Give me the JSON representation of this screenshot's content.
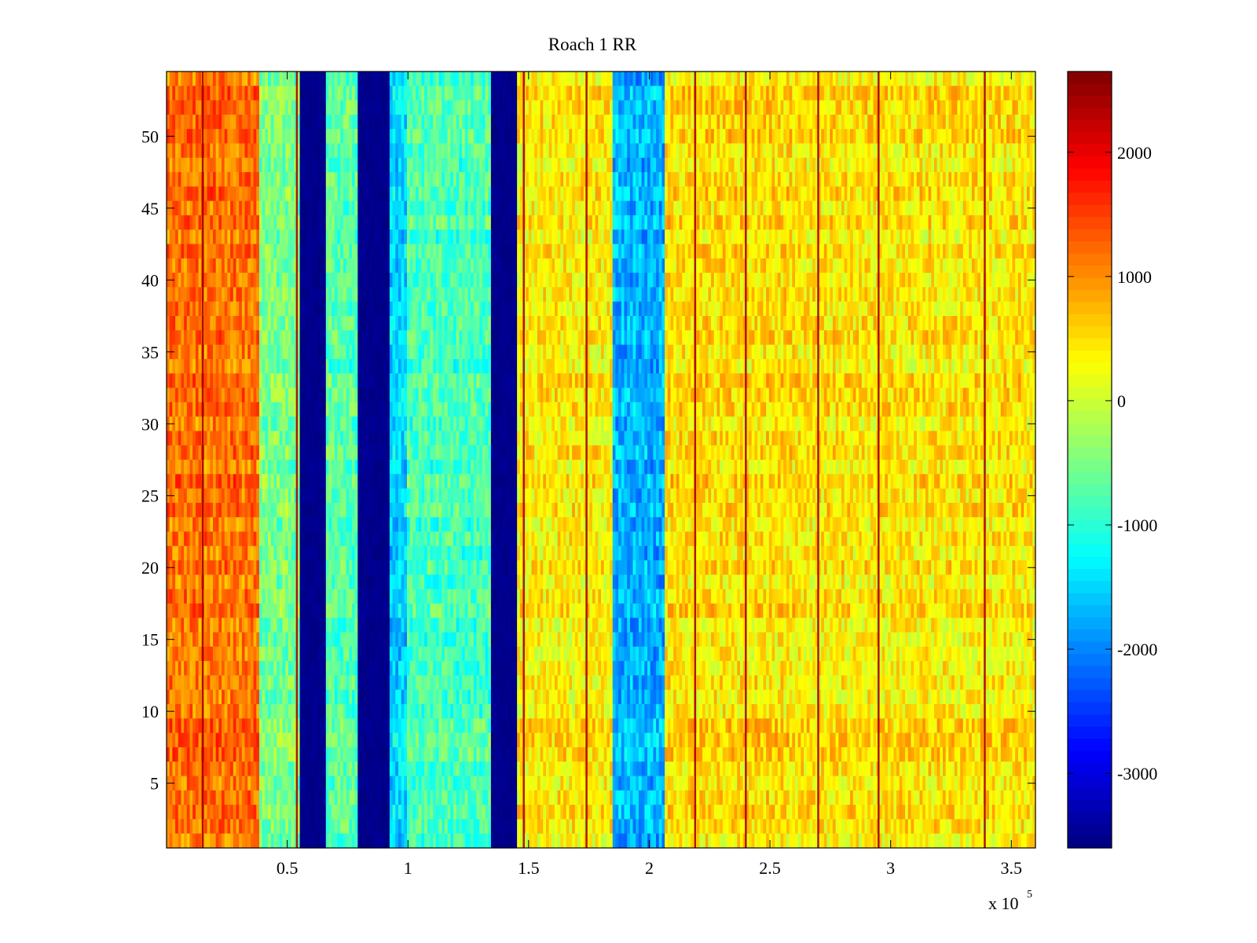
{
  "chart_data": {
    "type": "heatmap",
    "title": "Roach 1 RR",
    "xlabel": "",
    "ylabel": "",
    "x_exponent_label": "x 10",
    "x_exponent_power": "5",
    "xlim": [
      0,
      3.6
    ],
    "ylim": [
      0.5,
      54.5
    ],
    "x_ticks": [
      {
        "value": 0.5,
        "label": "0.5"
      },
      {
        "value": 1.0,
        "label": "1"
      },
      {
        "value": 1.5,
        "label": "1.5"
      },
      {
        "value": 2.0,
        "label": "2"
      },
      {
        "value": 2.5,
        "label": "2.5"
      },
      {
        "value": 3.0,
        "label": "3"
      },
      {
        "value": 3.5,
        "label": "3.5"
      }
    ],
    "y_ticks": [
      {
        "value": 5,
        "label": "5"
      },
      {
        "value": 10,
        "label": "10"
      },
      {
        "value": 15,
        "label": "15"
      },
      {
        "value": 20,
        "label": "20"
      },
      {
        "value": 25,
        "label": "25"
      },
      {
        "value": 30,
        "label": "30"
      },
      {
        "value": 35,
        "label": "35"
      },
      {
        "value": 40,
        "label": "40"
      },
      {
        "value": 45,
        "label": "45"
      },
      {
        "value": 50,
        "label": "50"
      }
    ],
    "colorbar": {
      "colormap": "jet",
      "clim": [
        -3600,
        2650
      ],
      "ticks": [
        {
          "value": 2000,
          "label": "2000"
        },
        {
          "value": 1000,
          "label": "1000"
        },
        {
          "value": 0,
          "label": "0"
        },
        {
          "value": -1000,
          "label": "-1000"
        },
        {
          "value": -2000,
          "label": "-2000"
        },
        {
          "value": -3000,
          "label": "-3000"
        }
      ]
    },
    "column_profile": [
      {
        "x0": 0.0,
        "x1": 0.38,
        "value": 1200
      },
      {
        "x0": 0.38,
        "x1": 0.55,
        "value": -500
      },
      {
        "x0": 0.55,
        "x1": 0.66,
        "value": -3600
      },
      {
        "x0": 0.66,
        "x1": 0.79,
        "value": -700
      },
      {
        "x0": 0.79,
        "x1": 0.93,
        "value": -3600
      },
      {
        "x0": 0.93,
        "x1": 1.0,
        "value": -1500
      },
      {
        "x0": 1.0,
        "x1": 1.34,
        "value": -800
      },
      {
        "x0": 1.34,
        "x1": 1.45,
        "value": -3600
      },
      {
        "x0": 1.45,
        "x1": 1.85,
        "value": 400
      },
      {
        "x0": 1.85,
        "x1": 2.07,
        "value": -1700
      },
      {
        "x0": 2.07,
        "x1": 2.6,
        "value": 500
      },
      {
        "x0": 2.6,
        "x1": 3.6,
        "value": 450
      }
    ],
    "bright_lines_x": [
      0.15,
      0.54,
      1.48,
      1.74,
      2.19,
      2.4,
      2.7,
      2.95,
      3.39
    ]
  }
}
